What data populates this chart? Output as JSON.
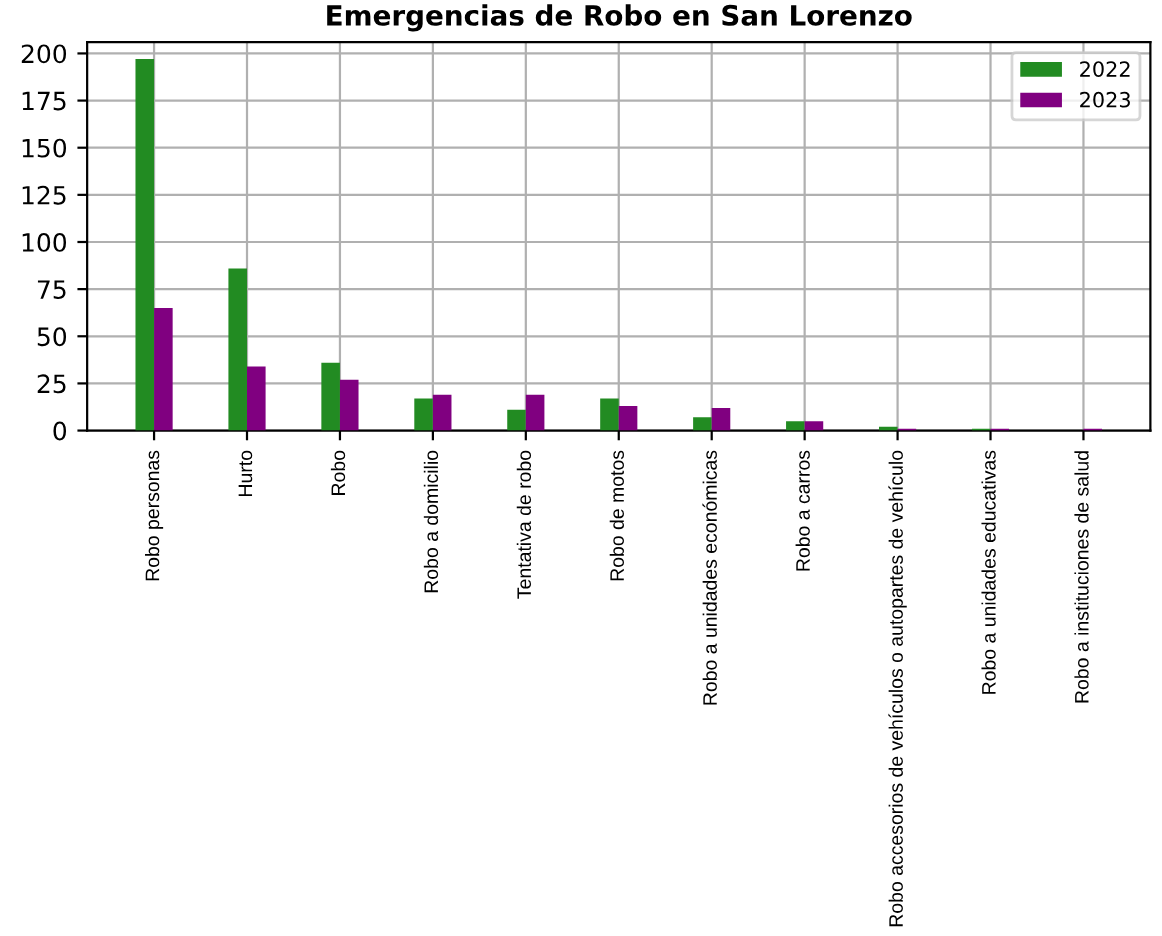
{
  "chart_data": {
    "type": "bar",
    "title": "Emergencias de Robo en San Lorenzo",
    "categories": [
      "Robo personas",
      "Hurto",
      "Robo",
      "Robo a domicilio",
      "Tentativa de robo",
      "Robo de motos",
      "Robo a unidades económicas",
      "Robo a carros",
      "Robo accesorios de vehículos o autopartes de vehículo",
      "Robo a unidades educativas",
      "Robo a instituciones de salud"
    ],
    "series": [
      {
        "name": "2022",
        "color": "#228b22",
        "values": [
          197,
          86,
          36,
          17,
          11,
          17,
          7,
          5,
          2,
          1,
          0
        ]
      },
      {
        "name": "2023",
        "color": "#800080",
        "values": [
          65,
          34,
          27,
          19,
          19,
          13,
          12,
          5,
          1,
          1,
          1
        ]
      }
    ],
    "ylim": [
      0,
      206
    ],
    "yticks": [
      0,
      25,
      50,
      75,
      100,
      125,
      150,
      175,
      200
    ],
    "grid": true,
    "legend": "top right"
  }
}
